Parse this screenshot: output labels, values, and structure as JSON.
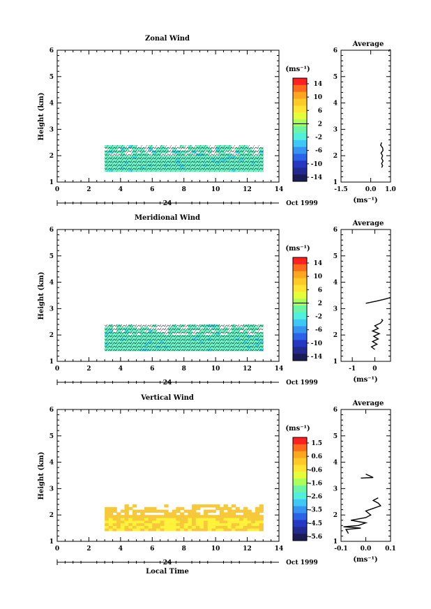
{
  "figure": {
    "xlabel": "Local Time",
    "date_label": "Oct 1999",
    "day_label": "24"
  },
  "chart_data": [
    {
      "type": "heatmap",
      "title": "Zonal Wind",
      "ylabel": "Height (km)",
      "xlim": [
        0,
        14
      ],
      "ylim": [
        1,
        6
      ],
      "xticks": [
        "0",
        "2",
        "4",
        "6",
        "8",
        "10",
        "12",
        "14"
      ],
      "yticks": [
        "1",
        "2",
        "3",
        "4",
        "5",
        "6"
      ],
      "data_x_range": [
        3,
        13
      ],
      "data_y_range": [
        1.4,
        2.4
      ],
      "dominant_value": "~0 to 2 ms-1 (teal)",
      "colorbar": {
        "unit": "(ms⁻¹)",
        "ticks": [
          "14",
          "10",
          "6",
          "2",
          "-2",
          "-6",
          "-10",
          "-14"
        ],
        "colors": [
          "#fe2020",
          "#ff6a1c",
          "#ffa61f",
          "#ffc926",
          "#ffe434",
          "#e4ff3a",
          "#aaff5a",
          "#6cf5a6",
          "#50f0dc",
          "#3fc8f5",
          "#3494f0",
          "#2a62e8",
          "#2438c4",
          "#222a92",
          "#1c1c55"
        ],
        "zero_line_value": "2"
      }
    },
    {
      "type": "line",
      "title": "Average",
      "xlabel": "(ms⁻¹)",
      "xlim": [
        -1.5,
        1.0
      ],
      "ylim": [
        1,
        6
      ],
      "xticks": [
        "-1.5",
        "0.0",
        "1.0"
      ],
      "yticks": [
        "1",
        "2",
        "3",
        "4",
        "5",
        "6"
      ],
      "series": [
        {
          "points": [
            [
              0.55,
              1.55
            ],
            [
              0.6,
              1.62
            ],
            [
              0.55,
              1.7
            ],
            [
              0.62,
              1.8
            ],
            [
              0.55,
              1.9
            ],
            [
              0.6,
              2.0
            ],
            [
              0.52,
              2.1
            ],
            [
              0.62,
              2.2
            ],
            [
              0.6,
              2.3
            ],
            [
              0.5,
              2.4
            ],
            [
              0.55,
              2.5
            ]
          ]
        },
        {
          "points": [
            [
              0.92,
              5.95
            ],
            [
              0.92,
              6.0
            ],
            [
              1.0,
              6.02
            ]
          ]
        }
      ]
    },
    {
      "type": "heatmap",
      "title": "Meridional Wind",
      "ylabel": "Height (km)",
      "xlim": [
        0,
        14
      ],
      "ylim": [
        1,
        6
      ],
      "xticks": [
        "0",
        "2",
        "4",
        "6",
        "8",
        "10",
        "12",
        "14"
      ],
      "yticks": [
        "1",
        "2",
        "3",
        "4",
        "5",
        "6"
      ],
      "data_x_range": [
        3,
        13
      ],
      "data_y_range": [
        1.4,
        2.4
      ],
      "dominant_value": "~0 to 2 ms-1 (teal)",
      "colorbar": {
        "unit": "(ms⁻¹)",
        "ticks": [
          "14",
          "10",
          "6",
          "2",
          "-2",
          "-6",
          "-10",
          "-14"
        ],
        "colors": [
          "#fe2020",
          "#ff6a1c",
          "#ffa61f",
          "#ffc926",
          "#ffe434",
          "#e4ff3a",
          "#aaff5a",
          "#6cf5a6",
          "#50f0dc",
          "#3fc8f5",
          "#3494f0",
          "#2a62e8",
          "#2438c4",
          "#222a92",
          "#1c1c55"
        ],
        "zero_line_value": "2"
      }
    },
    {
      "type": "line",
      "title": "Average",
      "xlabel": "(ms⁻¹)",
      "xlim": [
        -1.5,
        0.7
      ],
      "ylim": [
        1,
        6
      ],
      "xticks": [
        "-1",
        "0"
      ],
      "yticks": [
        "1",
        "2",
        "3",
        "4",
        "5",
        "6"
      ],
      "series": [
        {
          "points": [
            [
              0.0,
              1.45
            ],
            [
              -0.15,
              1.55
            ],
            [
              0.1,
              1.65
            ],
            [
              -0.1,
              1.75
            ],
            [
              0.15,
              1.85
            ],
            [
              -0.05,
              1.95
            ],
            [
              0.2,
              2.05
            ],
            [
              -0.1,
              2.15
            ],
            [
              0.15,
              2.25
            ],
            [
              0.0,
              2.35
            ],
            [
              0.25,
              2.45
            ],
            [
              0.35,
              2.55
            ],
            [
              0.3,
              2.6
            ]
          ]
        },
        {
          "points": [
            [
              -0.4,
              3.2
            ],
            [
              0.05,
              3.28
            ],
            [
              0.4,
              3.35
            ],
            [
              0.7,
              3.42
            ]
          ]
        }
      ]
    },
    {
      "type": "heatmap",
      "title": "Vertical Wind",
      "ylabel": "Height (km)",
      "xlim": [
        0,
        14
      ],
      "ylim": [
        1,
        6
      ],
      "xticks": [
        "0",
        "2",
        "4",
        "6",
        "8",
        "10",
        "12",
        "14"
      ],
      "yticks": [
        "1",
        "2",
        "3",
        "4",
        "5",
        "6"
      ],
      "data_x_range": [
        3,
        13
      ],
      "data_y_range": [
        1.4,
        2.4
      ],
      "dominant_value": "~-0.6 to 0.6 ms-1 (yellow/orange)",
      "colorbar": {
        "unit": "(ms⁻¹)",
        "ticks": [
          "1.5",
          "0.6",
          "-0.6",
          "-1.6",
          "-2.6",
          "-3.5",
          "-4.5",
          "-5.6"
        ],
        "colors": [
          "#fe2020",
          "#ff6a1c",
          "#ffa61f",
          "#ffc926",
          "#ffe434",
          "#e4ff3a",
          "#aaff5a",
          "#6cf5a6",
          "#50f0dc",
          "#3fc8f5",
          "#3494f0",
          "#2a62e8",
          "#2438c4",
          "#222a92",
          "#1c1c55"
        ]
      }
    },
    {
      "type": "line",
      "title": "Average",
      "xlabel": "(ms⁻¹)",
      "xlim": [
        -0.1,
        0.1
      ],
      "ylim": [
        1,
        6
      ],
      "xticks": [
        "-0.1",
        "0.0",
        "0.1"
      ],
      "yticks": [
        "1",
        "2",
        "3",
        "4",
        "5",
        "6"
      ],
      "series": [
        {
          "points": [
            [
              -0.07,
              1.3
            ],
            [
              -0.08,
              1.45
            ],
            [
              -0.02,
              1.5
            ],
            [
              -0.09,
              1.55
            ],
            [
              -0.03,
              1.6
            ],
            [
              0.0,
              1.7
            ],
            [
              -0.06,
              1.8
            ],
            [
              0.0,
              1.9
            ],
            [
              0.02,
              2.0
            ],
            [
              0.0,
              2.15
            ],
            [
              0.03,
              2.25
            ],
            [
              0.06,
              2.35
            ],
            [
              0.05,
              2.45
            ],
            [
              0.03,
              2.55
            ],
            [
              0.05,
              2.65
            ]
          ]
        },
        {
          "points": [
            [
              -0.02,
              3.4
            ],
            [
              0.03,
              3.42
            ],
            [
              0.0,
              3.55
            ]
          ]
        }
      ]
    }
  ]
}
